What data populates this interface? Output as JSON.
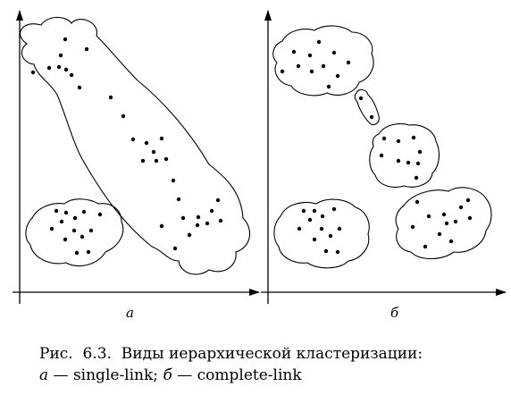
{
  "panels": {
    "a": {
      "label": "а"
    },
    "b": {
      "label": "б"
    }
  },
  "caption": {
    "prefix": "Рис.",
    "number": "6.3.",
    "title": "Виды иерархической кластеризации:",
    "a_letter": "а",
    "a_text": "— single-link;",
    "b_letter": "б",
    "b_text": "— complete-link"
  },
  "colors": {
    "ink": "#000000",
    "background": "#ffffff"
  }
}
